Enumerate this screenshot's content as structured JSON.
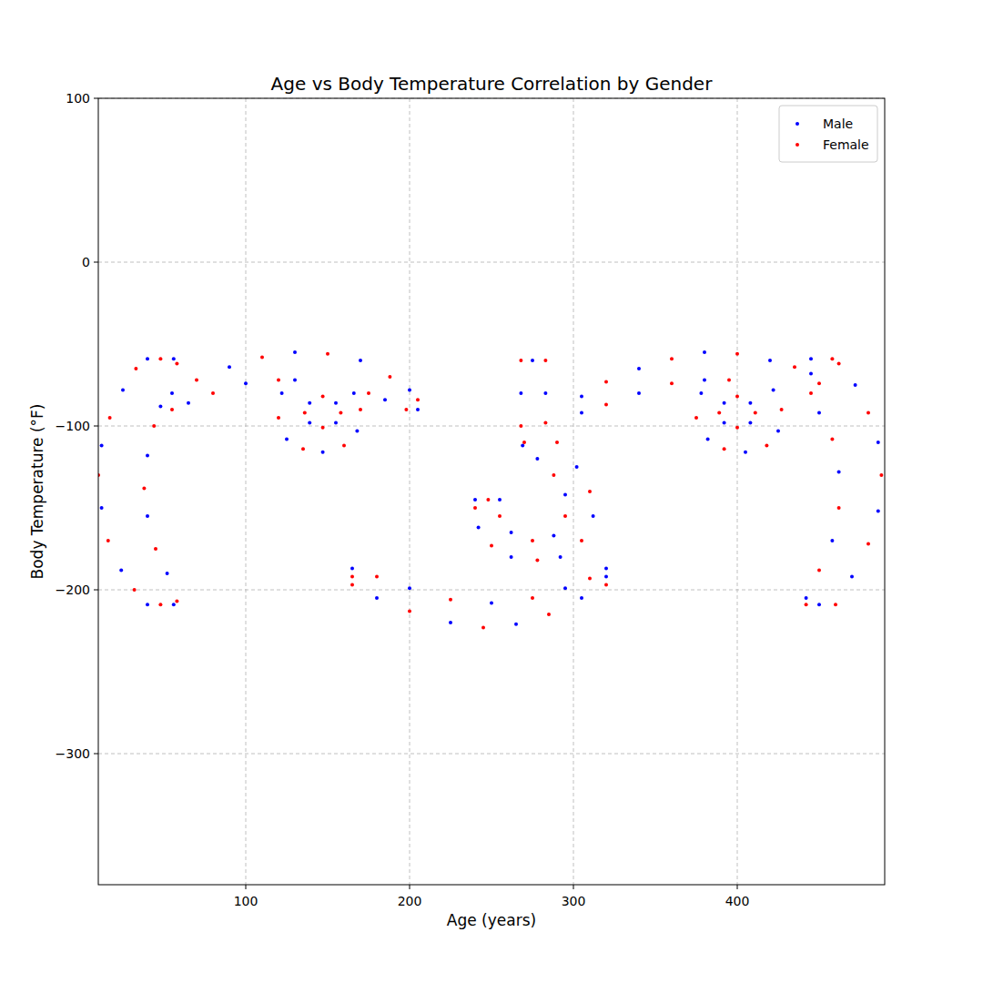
{
  "chart_data": {
    "type": "scatter",
    "title": "Age vs Body Temperature Correlation by Gender",
    "x_label": "Age (years)",
    "y_label": "Body Temperature (°F)",
    "xlim": [
      10,
      490
    ],
    "ylim": [
      -380,
      100
    ],
    "xticks": [
      100,
      200,
      300,
      400
    ],
    "yticks": [
      {
        "value": -300,
        "label": "−300"
      },
      {
        "value": -200,
        "label": "−200"
      },
      {
        "value": -100,
        "label": "−100"
      },
      0,
      100
    ],
    "grid": true,
    "legend": "upper right",
    "series": [
      {
        "name": "Male",
        "color": "#0000ff",
        "marker": "circle",
        "x": [
          40,
          25,
          12,
          12,
          24,
          40,
          56,
          52,
          40,
          40,
          48,
          56,
          55,
          90,
          130,
          170,
          200,
          205,
          185,
          130,
          100,
          65,
          122,
          125,
          147,
          168,
          166,
          155,
          155,
          139,
          139,
          268,
          269,
          283,
          275,
          302,
          312,
          292,
          262,
          242,
          240,
          255,
          262,
          288,
          295,
          278,
          165,
          200,
          250,
          295,
          320,
          180,
          225,
          265,
          305,
          320,
          305,
          340,
          380,
          420,
          445,
          305,
          340,
          380,
          445,
          378,
          382,
          405,
          425,
          422,
          408,
          408,
          392,
          392,
          472,
          486,
          486,
          470,
          450,
          442,
          458,
          462,
          450
        ],
        "values": [
          -59,
          -78,
          -112,
          -150,
          -188,
          -209,
          -209,
          -190,
          -155,
          -118,
          -88,
          -59,
          -80,
          -64,
          -55,
          -60,
          -78,
          -90,
          -84,
          -72,
          -74,
          -86,
          -80,
          -108,
          -116,
          -103,
          -80,
          -86,
          -98,
          -98,
          -86,
          -80,
          -112,
          -80,
          -60,
          -125,
          -155,
          -180,
          -180,
          -162,
          -145,
          -145,
          -165,
          -167,
          -142,
          -120,
          -187,
          -199,
          -208,
          -199,
          -187,
          -205,
          -220,
          -221,
          -205,
          -192,
          -82,
          -65,
          -55,
          -60,
          -68,
          -92,
          -80,
          -72,
          -59,
          -80,
          -108,
          -116,
          -103,
          -78,
          -86,
          -98,
          -98,
          -86,
          -75,
          -110,
          -152,
          -192,
          -209,
          -205,
          -170,
          -128,
          -92
        ]
      },
      {
        "name": "Female",
        "color": "#ff0000",
        "marker": "circle",
        "x": [
          33,
          17,
          10,
          16,
          32,
          48,
          58,
          45,
          38,
          44,
          48,
          58,
          70,
          110,
          150,
          188,
          205,
          198,
          175,
          120,
          80,
          55,
          120,
          135,
          160,
          170,
          147,
          158,
          147,
          136,
          268,
          268,
          283,
          283,
          290,
          310,
          305,
          278,
          250,
          240,
          248,
          255,
          275,
          295,
          288,
          270,
          180,
          225,
          275,
          310,
          165,
          200,
          245,
          285,
          320,
          165,
          320,
          360,
          400,
          435,
          450,
          320,
          360,
          395,
          458,
          375,
          392,
          418,
          427,
          400,
          411,
          400,
          389,
          462,
          480,
          488,
          480,
          460,
          442,
          450,
          462,
          458,
          445
        ],
        "values": [
          -65,
          -95,
          -130,
          -170,
          -200,
          -209,
          -207,
          -175,
          -138,
          -100,
          -59,
          -62,
          -72,
          -58,
          -56,
          -70,
          -84,
          -90,
          -80,
          -72,
          -80,
          -90,
          -95,
          -114,
          -112,
          -90,
          -82,
          -92,
          -101,
          -92,
          -60,
          -100,
          -60,
          -98,
          -110,
          -140,
          -170,
          -182,
          -173,
          -150,
          -145,
          -155,
          -170,
          -155,
          -130,
          -110,
          -192,
          -206,
          -205,
          -193,
          -197,
          -213,
          -223,
          -215,
          -197,
          -192,
          -73,
          -59,
          -56,
          -64,
          -74,
          -87,
          -74,
          -72,
          -59,
          -95,
          -114,
          -112,
          -90,
          -82,
          -92,
          -101,
          -92,
          -62,
          -92,
          -130,
          -172,
          -209,
          -209,
          -188,
          -150,
          -108,
          -80
        ]
      }
    ]
  }
}
